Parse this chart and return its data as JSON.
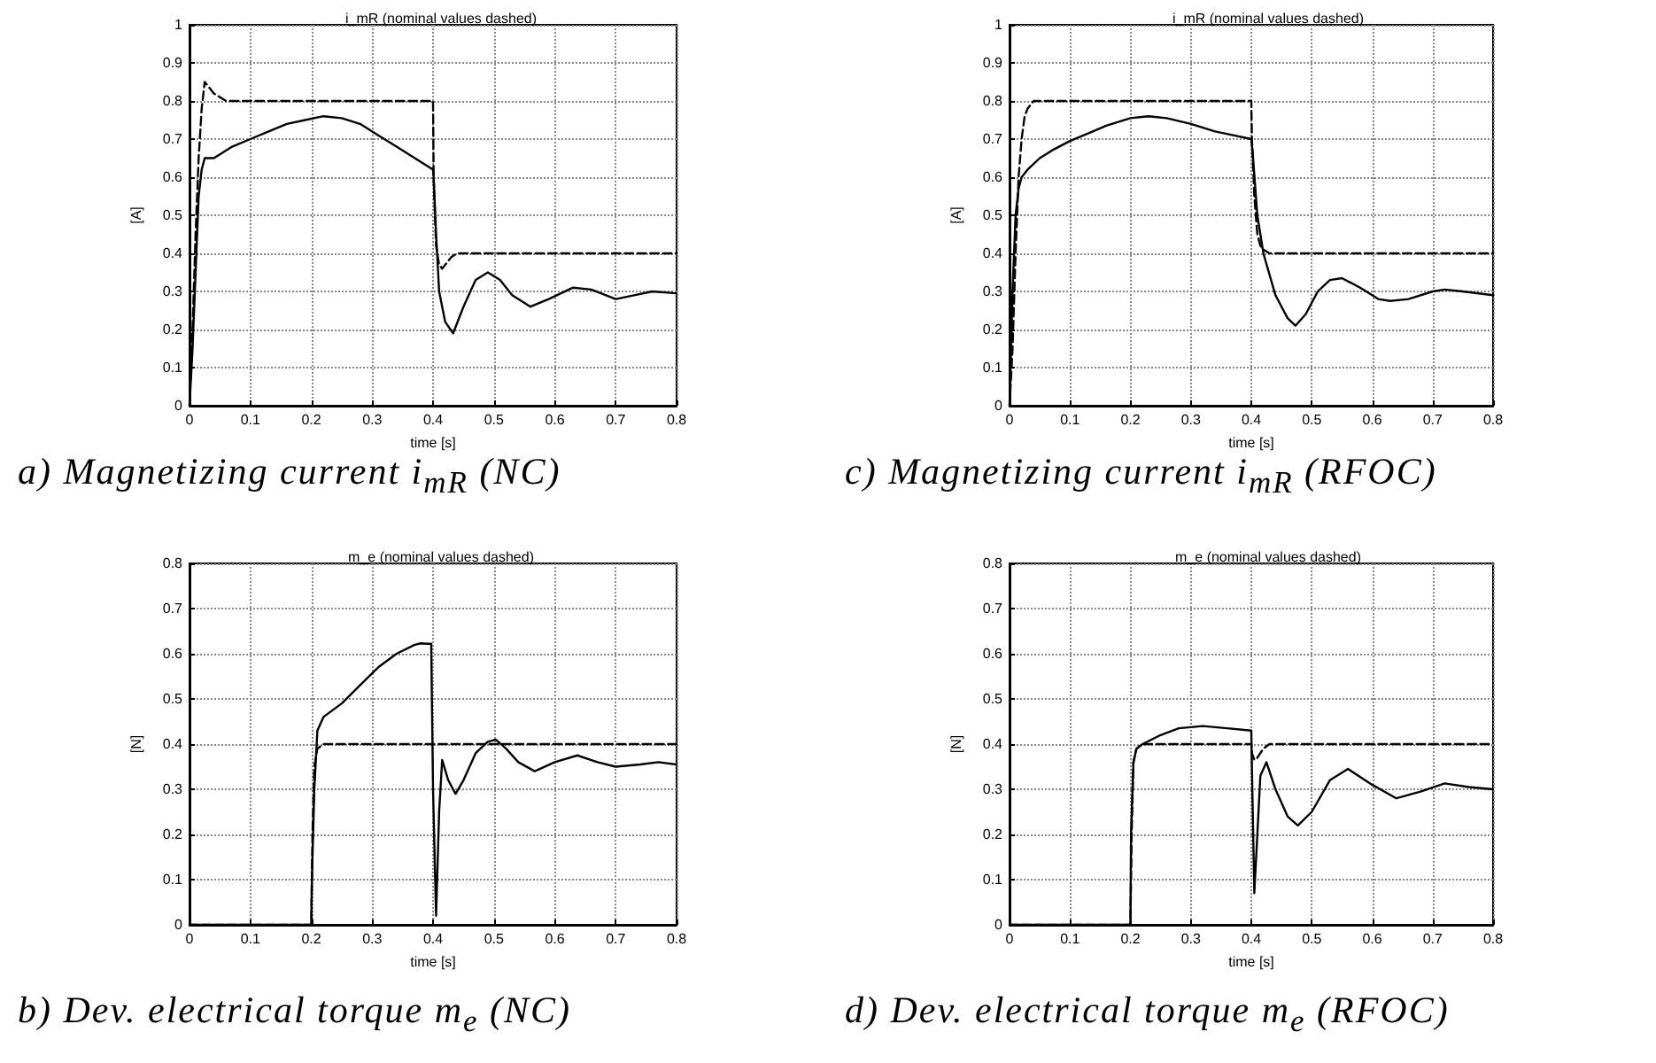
{
  "chart_data": [
    {
      "type": "line",
      "title": "i_mR (nominal values dashed)",
      "xlabel": "time [s]",
      "ylabel": "[A]",
      "annotations": [
        "a)  Magnetizing current i$_{mR}$ (NC)"
      ],
      "xlim": [
        0,
        0.8
      ],
      "xticks": [
        0,
        0.1,
        0.2,
        0.3,
        0.4,
        0.5,
        0.6,
        0.7,
        0.8
      ],
      "ylim": [
        0,
        1
      ],
      "yticks": [
        0,
        0.1,
        0.2,
        0.3,
        0.4,
        0.5,
        0.6,
        0.7,
        0.8,
        0.9,
        1
      ],
      "grid": true,
      "series": [
        {
          "color": "#000000",
          "line_style": "solid",
          "x": [
            0,
            0.005,
            0.01,
            0.015,
            0.02,
            0.025,
            0.03,
            0.04,
            0.05,
            0.07,
            0.1,
            0.13,
            0.16,
            0.19,
            0.22,
            0.25,
            0.28,
            0.31,
            0.34,
            0.37,
            0.4,
            0.401,
            0.405,
            0.41,
            0.42,
            0.433,
            0.45,
            0.47,
            0.49,
            0.51,
            0.53,
            0.56,
            0.59,
            0.63,
            0.66,
            0.7,
            0.73,
            0.76,
            0.8
          ],
          "values": [
            0,
            0.15,
            0.35,
            0.55,
            0.62,
            0.65,
            0.65,
            0.65,
            0.66,
            0.68,
            0.7,
            0.72,
            0.74,
            0.75,
            0.76,
            0.755,
            0.74,
            0.71,
            0.68,
            0.65,
            0.62,
            0.6,
            0.45,
            0.3,
            0.22,
            0.19,
            0.26,
            0.33,
            0.35,
            0.33,
            0.29,
            0.26,
            0.28,
            0.31,
            0.305,
            0.28,
            0.29,
            0.3,
            0.295
          ]
        },
        {
          "color": "#000000",
          "line_style": "dashed",
          "x": [
            0,
            0.005,
            0.01,
            0.015,
            0.02,
            0.025,
            0.03,
            0.04,
            0.05,
            0.06,
            0.08,
            0.1,
            0.2,
            0.3,
            0.4,
            0.401,
            0.405,
            0.41,
            0.415,
            0.42,
            0.43,
            0.44,
            0.5,
            0.6,
            0.7,
            0.8
          ],
          "values": [
            0,
            0.2,
            0.45,
            0.65,
            0.78,
            0.85,
            0.84,
            0.82,
            0.81,
            0.8,
            0.8,
            0.8,
            0.8,
            0.8,
            0.8,
            0.6,
            0.42,
            0.37,
            0.36,
            0.37,
            0.39,
            0.4,
            0.4,
            0.4,
            0.4,
            0.4
          ]
        }
      ]
    },
    {
      "type": "line",
      "title": "i_mR (nominal values dashed)",
      "xlabel": "time [s]",
      "ylabel": "[A]",
      "annotations": [
        "c)  Magnetizing current i$_{mR}$ (RFOC)"
      ],
      "xlim": [
        0,
        0.8
      ],
      "xticks": [
        0,
        0.1,
        0.2,
        0.3,
        0.4,
        0.5,
        0.6,
        0.7,
        0.8
      ],
      "ylim": [
        0,
        1
      ],
      "yticks": [
        0,
        0.1,
        0.2,
        0.3,
        0.4,
        0.5,
        0.6,
        0.7,
        0.8,
        0.9,
        1
      ],
      "grid": true,
      "series": [
        {
          "color": "#000000",
          "line_style": "solid",
          "x": [
            0,
            0.005,
            0.01,
            0.015,
            0.02,
            0.03,
            0.05,
            0.07,
            0.1,
            0.13,
            0.16,
            0.2,
            0.23,
            0.26,
            0.3,
            0.34,
            0.37,
            0.4,
            0.402,
            0.41,
            0.42,
            0.44,
            0.46,
            0.473,
            0.49,
            0.51,
            0.53,
            0.55,
            0.58,
            0.61,
            0.63,
            0.66,
            0.7,
            0.72,
            0.75,
            0.8
          ],
          "values": [
            0,
            0.3,
            0.5,
            0.57,
            0.6,
            0.62,
            0.65,
            0.67,
            0.695,
            0.715,
            0.735,
            0.755,
            0.76,
            0.755,
            0.74,
            0.72,
            0.71,
            0.7,
            0.67,
            0.5,
            0.4,
            0.29,
            0.23,
            0.21,
            0.24,
            0.3,
            0.33,
            0.335,
            0.31,
            0.28,
            0.275,
            0.28,
            0.3,
            0.305,
            0.3,
            0.29
          ]
        },
        {
          "color": "#000000",
          "line_style": "dashed",
          "x": [
            0,
            0.005,
            0.01,
            0.015,
            0.02,
            0.025,
            0.03,
            0.035,
            0.04,
            0.05,
            0.1,
            0.2,
            0.3,
            0.4,
            0.401,
            0.405,
            0.41,
            0.415,
            0.42,
            0.43,
            0.5,
            0.6,
            0.7,
            0.8
          ],
          "values": [
            0,
            0.15,
            0.4,
            0.6,
            0.7,
            0.76,
            0.78,
            0.79,
            0.8,
            0.8,
            0.8,
            0.8,
            0.8,
            0.8,
            0.7,
            0.55,
            0.45,
            0.42,
            0.41,
            0.4,
            0.4,
            0.4,
            0.4,
            0.4
          ]
        }
      ]
    },
    {
      "type": "line",
      "title": "m_e (nominal values dashed)",
      "xlabel": "time [s]",
      "ylabel": "[N]",
      "annotations": [
        "b)  Dev. electrical torque m$_{e}$ (NC)"
      ],
      "xlim": [
        0,
        0.8
      ],
      "xticks": [
        0,
        0.1,
        0.2,
        0.3,
        0.4,
        0.5,
        0.6,
        0.7,
        0.8
      ],
      "ylim": [
        0,
        0.8
      ],
      "yticks": [
        0,
        0.1,
        0.2,
        0.3,
        0.4,
        0.5,
        0.6,
        0.7,
        0.8
      ],
      "grid": true,
      "series": [
        {
          "color": "#000000",
          "line_style": "solid",
          "x": [
            0,
            0.2,
            0.201,
            0.205,
            0.21,
            0.22,
            0.25,
            0.28,
            0.31,
            0.34,
            0.37,
            0.38,
            0.39,
            0.397,
            0.4,
            0.405,
            0.41,
            0.415,
            0.425,
            0.437,
            0.45,
            0.47,
            0.49,
            0.503,
            0.52,
            0.54,
            0.567,
            0.6,
            0.637,
            0.67,
            0.7,
            0.74,
            0.77,
            0.8
          ],
          "values": [
            0,
            0,
            0.1,
            0.3,
            0.43,
            0.46,
            0.49,
            0.53,
            0.57,
            0.6,
            0.62,
            0.623,
            0.622,
            0.622,
            0.3,
            0.02,
            0.25,
            0.365,
            0.32,
            0.29,
            0.32,
            0.38,
            0.405,
            0.41,
            0.39,
            0.36,
            0.34,
            0.36,
            0.375,
            0.36,
            0.35,
            0.355,
            0.36,
            0.355
          ]
        },
        {
          "color": "#000000",
          "line_style": "dashed",
          "x": [
            0,
            0.2,
            0.202,
            0.205,
            0.21,
            0.22,
            0.8
          ],
          "values": [
            0,
            0,
            0.2,
            0.35,
            0.39,
            0.4,
            0.4
          ]
        }
      ]
    },
    {
      "type": "line",
      "title": "m_e (nominal values dashed)",
      "xlabel": "time [s]",
      "ylabel": "[N]",
      "annotations": [
        "d)  Dev. electrical torque m$_{e}$ (RFOC)"
      ],
      "xlim": [
        0,
        0.8
      ],
      "xticks": [
        0,
        0.1,
        0.2,
        0.3,
        0.4,
        0.5,
        0.6,
        0.7,
        0.8
      ],
      "ylim": [
        0,
        0.8
      ],
      "yticks": [
        0,
        0.1,
        0.2,
        0.3,
        0.4,
        0.5,
        0.6,
        0.7,
        0.8
      ],
      "grid": true,
      "series": [
        {
          "color": "#000000",
          "line_style": "solid",
          "x": [
            0,
            0.2,
            0.201,
            0.205,
            0.21,
            0.22,
            0.25,
            0.28,
            0.32,
            0.36,
            0.4,
            0.401,
            0.405,
            0.41,
            0.415,
            0.425,
            0.44,
            0.46,
            0.477,
            0.5,
            0.53,
            0.56,
            0.6,
            0.64,
            0.68,
            0.72,
            0.76,
            0.8
          ],
          "values": [
            0,
            0,
            0.2,
            0.36,
            0.39,
            0.4,
            0.42,
            0.435,
            0.44,
            0.435,
            0.43,
            0.35,
            0.07,
            0.2,
            0.33,
            0.36,
            0.3,
            0.24,
            0.22,
            0.25,
            0.32,
            0.345,
            0.31,
            0.28,
            0.295,
            0.313,
            0.305,
            0.3
          ]
        },
        {
          "color": "#000000",
          "line_style": "dashed",
          "x": [
            0,
            0.2,
            0.202,
            0.205,
            0.21,
            0.22,
            0.4,
            0.401,
            0.405,
            0.41,
            0.42,
            0.43,
            0.8
          ],
          "values": [
            0,
            0,
            0.2,
            0.36,
            0.39,
            0.4,
            0.4,
            0.38,
            0.365,
            0.37,
            0.39,
            0.4,
            0.4
          ]
        }
      ]
    }
  ]
}
